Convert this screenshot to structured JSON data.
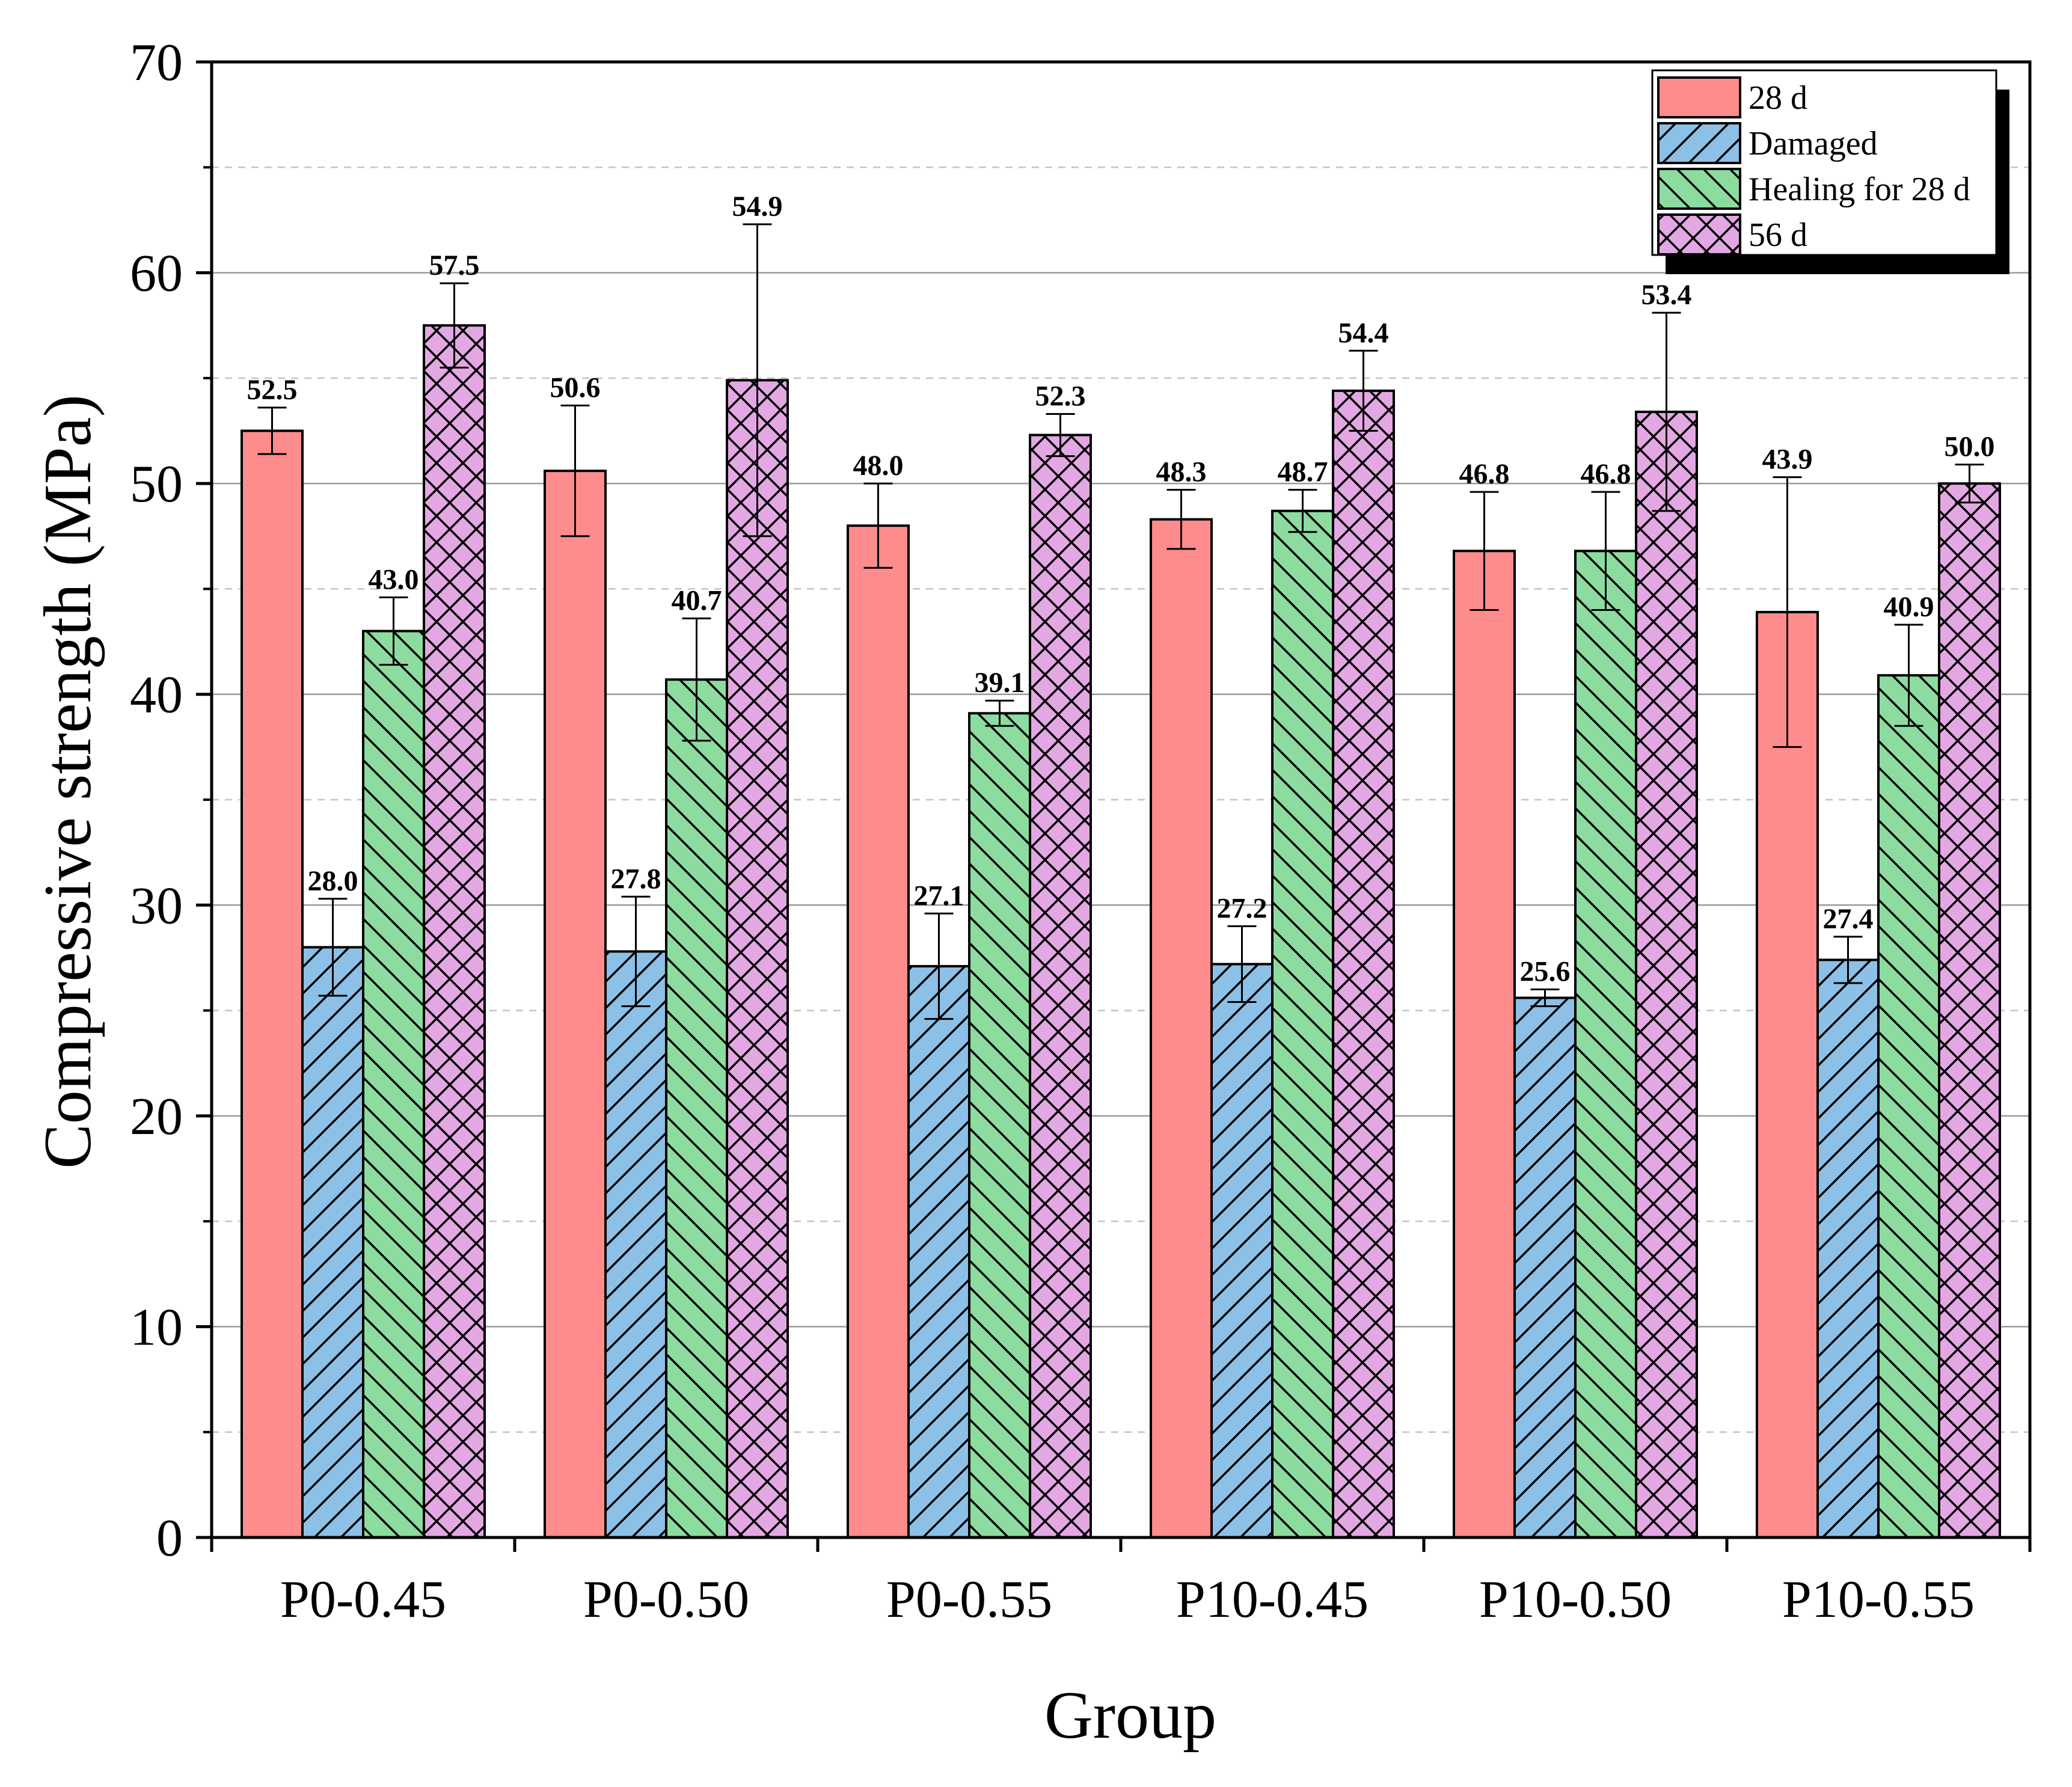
{
  "chart_data": {
    "type": "bar",
    "title": "",
    "xlabel": "Group",
    "ylabel": "Compressive strength (MPa)",
    "ylim": [
      0,
      70
    ],
    "yticks": [
      0,
      10,
      20,
      30,
      40,
      50,
      60,
      70
    ],
    "grid": true,
    "legend_position": "top-right",
    "categories": [
      "P0-0.45",
      "P0-0.50",
      "P0-0.55",
      "P10-0.45",
      "P10-0.50",
      "P10-0.55"
    ],
    "series": [
      {
        "name": "28 d",
        "color": "#FF8C8C",
        "pattern": "none",
        "values": [
          52.5,
          50.6,
          48.0,
          48.3,
          46.8,
          43.9
        ],
        "labels": [
          "52.5",
          "50.6",
          "48.0",
          "48.3",
          "46.8",
          "43.9"
        ],
        "errors": [
          1.1,
          3.1,
          2.0,
          1.4,
          2.8,
          6.4
        ]
      },
      {
        "name": "Damaged",
        "color": "#8CC0E6",
        "pattern": "forward-diagonal",
        "values": [
          28.0,
          27.8,
          27.1,
          27.2,
          25.6,
          27.4
        ],
        "labels": [
          "28.0",
          "27.8",
          "27.1",
          "27.2",
          "25.6",
          "27.4"
        ],
        "errors": [
          2.3,
          2.6,
          2.5,
          1.8,
          0.4,
          1.1
        ]
      },
      {
        "name": "Healing for 28 d",
        "color": "#8CDCA0",
        "pattern": "back-diagonal",
        "values": [
          43.0,
          40.7,
          39.1,
          48.7,
          46.8,
          40.9
        ],
        "labels": [
          "43.0",
          "40.7",
          "39.1",
          "48.7",
          "46.8",
          "40.9"
        ],
        "errors": [
          1.6,
          2.9,
          0.6,
          1.0,
          2.8,
          2.4
        ]
      },
      {
        "name": "56 d",
        "color": "#E3A8E3",
        "pattern": "crosshatch",
        "values": [
          57.5,
          54.9,
          52.3,
          54.4,
          53.4,
          50.0
        ],
        "labels": [
          "57.5",
          "54.9",
          "52.3",
          "54.4",
          "53.4",
          "50.0"
        ],
        "errors": [
          2.0,
          7.4,
          1.0,
          1.9,
          4.7,
          0.9
        ]
      }
    ]
  }
}
